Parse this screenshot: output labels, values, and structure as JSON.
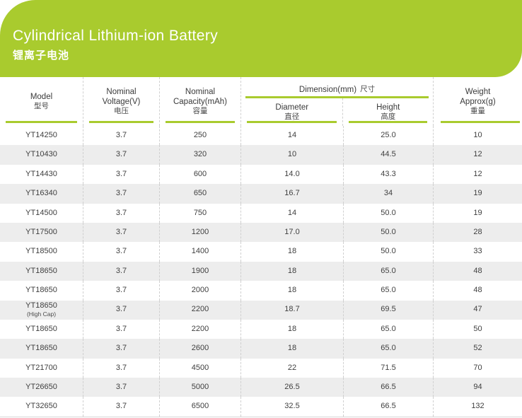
{
  "banner": {
    "title": "Cylindrical Lithium-ion Battery",
    "subtitle": "锂离子电池"
  },
  "colors": {
    "accent_green": "#a9cb2e",
    "alt_row_gray": "#ededed",
    "banner_text": "#ffffff",
    "body_text": "#3f3f3f"
  },
  "table": {
    "header": {
      "model": {
        "line1": "Model",
        "zh": "型号"
      },
      "voltage": {
        "line1": "Nominal",
        "line2": "Voltage(V)",
        "zh": "电压"
      },
      "capacity": {
        "line1": "Nominal",
        "line2": "Capacity(mAh)",
        "zh": "容量"
      },
      "dimension": {
        "en": "Dimension(mm)",
        "zh": "尺寸"
      },
      "diameter": {
        "line1": "Diameter",
        "zh": "直径"
      },
      "height": {
        "line1": "Height",
        "zh": "高度"
      },
      "weight": {
        "line1": "Weight",
        "line2": "Approx(g)",
        "zh": "重量"
      }
    },
    "rows": [
      {
        "model": "YT14250",
        "note": "",
        "voltage": "3.7",
        "capacity": "250",
        "diameter": "14",
        "height": "25.0",
        "weight": "10"
      },
      {
        "model": "YT10430",
        "note": "",
        "voltage": "3.7",
        "capacity": "320",
        "diameter": "10",
        "height": "44.5",
        "weight": "12"
      },
      {
        "model": "YT14430",
        "note": "",
        "voltage": "3.7",
        "capacity": "600",
        "diameter": "14.0",
        "height": "43.3",
        "weight": "12"
      },
      {
        "model": "YT16340",
        "note": "",
        "voltage": "3.7",
        "capacity": "650",
        "diameter": "16.7",
        "height": "34",
        "weight": "19"
      },
      {
        "model": "YT14500",
        "note": "",
        "voltage": "3.7",
        "capacity": "750",
        "diameter": "14",
        "height": "50.0",
        "weight": "19"
      },
      {
        "model": "YT17500",
        "note": "",
        "voltage": "3.7",
        "capacity": "1200",
        "diameter": "17.0",
        "height": "50.0",
        "weight": "28"
      },
      {
        "model": "YT18500",
        "note": "",
        "voltage": "3.7",
        "capacity": "1400",
        "diameter": "18",
        "height": "50.0",
        "weight": "33"
      },
      {
        "model": "YT18650",
        "note": "",
        "voltage": "3.7",
        "capacity": "1900",
        "diameter": "18",
        "height": "65.0",
        "weight": "48"
      },
      {
        "model": "YT18650",
        "note": "",
        "voltage": "3.7",
        "capacity": "2000",
        "diameter": "18",
        "height": "65.0",
        "weight": "48"
      },
      {
        "model": "YT18650",
        "note": "(High Cap)",
        "voltage": "3.7",
        "capacity": "2200",
        "diameter": "18.7",
        "height": "69.5",
        "weight": "47"
      },
      {
        "model": "YT18650",
        "note": "",
        "voltage": "3.7",
        "capacity": "2200",
        "diameter": "18",
        "height": "65.0",
        "weight": "50"
      },
      {
        "model": "YT18650",
        "note": "",
        "voltage": "3.7",
        "capacity": "2600",
        "diameter": "18",
        "height": "65.0",
        "weight": "52"
      },
      {
        "model": "YT21700",
        "note": "",
        "voltage": "3.7",
        "capacity": "4500",
        "diameter": "22",
        "height": "71.5",
        "weight": "70"
      },
      {
        "model": "YT26650",
        "note": "",
        "voltage": "3.7",
        "capacity": "5000",
        "diameter": "26.5",
        "height": "66.5",
        "weight": "94"
      },
      {
        "model": "YT32650",
        "note": "",
        "voltage": "3.7",
        "capacity": "6500",
        "diameter": "32.5",
        "height": "66.5",
        "weight": "132"
      }
    ]
  }
}
